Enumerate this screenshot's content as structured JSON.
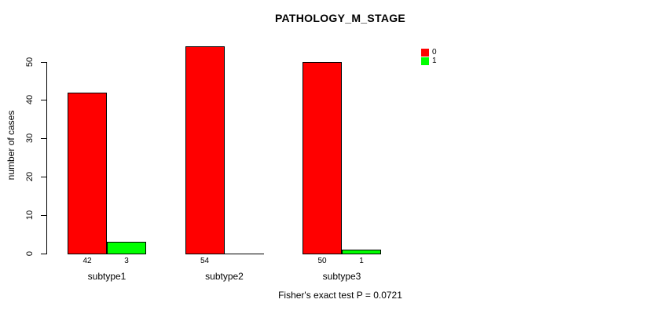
{
  "chart_data": {
    "type": "bar",
    "title": "PATHOLOGY_M_STAGE",
    "ylabel": "number of cases",
    "xlabel": "",
    "categories": [
      "subtype1",
      "subtype2",
      "subtype3"
    ],
    "series": [
      {
        "name": "0",
        "color": "#ff0000",
        "values": [
          42,
          54,
          50
        ]
      },
      {
        "name": "1",
        "color": "#00ff00",
        "values": [
          3,
          0,
          1
        ]
      }
    ],
    "bar_value_labels": [
      [
        "42",
        "3"
      ],
      [
        "54",
        ""
      ],
      [
        "50",
        "1"
      ]
    ],
    "yticks": [
      0,
      10,
      20,
      30,
      40,
      50
    ],
    "ylim": [
      0,
      54
    ],
    "grid": false,
    "legend": {
      "position": "top-right",
      "entries": [
        "0",
        "1"
      ]
    },
    "footer": "Fisher's exact test P = 0.0721"
  }
}
